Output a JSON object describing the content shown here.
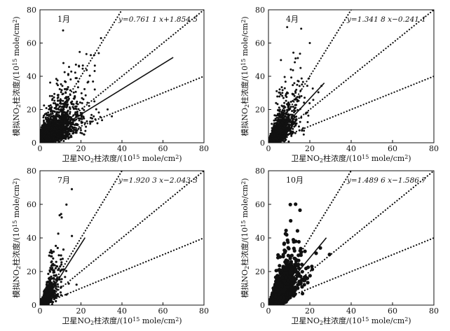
{
  "chart_data": [
    {
      "type": "scatter",
      "month_label": "1月",
      "equation": "y=0.761 1 x+1.854 5",
      "fit": {
        "slope": 0.7611,
        "intercept": 1.8545,
        "x_range": [
          6,
          65
        ]
      },
      "reference_slopes": [
        2,
        1,
        0.5
      ],
      "xlabel": "卫星NO₂柱浓度/(10¹⁵ mole/cm²)",
      "ylabel": "模拟NO₂柱浓度/(10¹⁵ mole/cm²)",
      "xlim": [
        0,
        80
      ],
      "ylim": [
        0,
        80
      ],
      "xticks": [
        "0",
        "20",
        "40",
        "60",
        "80"
      ],
      "yticks": [
        "0",
        "20",
        "40",
        "60",
        "80"
      ],
      "cloud": {
        "x_center": 7,
        "x_spread": 7,
        "x_max": 42,
        "y_spread": 1.1,
        "n": 2400
      }
    },
    {
      "type": "scatter",
      "month_label": "4月",
      "equation": "y=1.341 8 x−0.241 1",
      "fit": {
        "slope": 1.3418,
        "intercept": -0.2411,
        "x_range": [
          4,
          27
        ]
      },
      "reference_slopes": [
        2,
        1,
        0.5
      ],
      "xlabel": "卫星NO₂柱浓度/(10¹⁵ mole/cm²)",
      "ylabel": "模拟NO₂柱浓度/(10¹⁵ mole/cm²)",
      "xlim": [
        0,
        80
      ],
      "ylim": [
        0,
        80
      ],
      "xticks": [
        "0",
        "20",
        "40",
        "60",
        "80"
      ],
      "yticks": [
        "0",
        "20",
        "40",
        "60",
        "80"
      ],
      "cloud": {
        "x_center": 4,
        "x_spread": 5,
        "x_max": 33,
        "y_spread": 1.0,
        "n": 1500
      }
    },
    {
      "type": "scatter",
      "month_label": "7月",
      "equation": "y=1.920 3 x−2.043 3",
      "fit": {
        "slope": 1.9203,
        "intercept": -2.0433,
        "x_range": [
          4,
          22
        ]
      },
      "reference_slopes": [
        2,
        1,
        0.5
      ],
      "xlabel": "卫星NO₂柱浓度/(10¹⁵ mole/cm²)",
      "ylabel": "模拟NO₂柱浓度/(10¹⁵ mole/cm²)",
      "xlim": [
        0,
        80
      ],
      "ylim": [
        0,
        80
      ],
      "xticks": [
        "0",
        "20",
        "40",
        "60",
        "80"
      ],
      "yticks": [
        "0",
        "20",
        "40",
        "60",
        "80"
      ],
      "cloud": {
        "x_center": 3,
        "x_spread": 3.2,
        "x_max": 22,
        "y_spread": 1.0,
        "n": 1200
      }
    },
    {
      "type": "scatter",
      "month_label": "10月",
      "equation": "y=1.489 6 x−1.586 7",
      "fit": {
        "slope": 1.4896,
        "intercept": -1.5867,
        "x_range": [
          5,
          28
        ]
      },
      "reference_slopes": [
        2,
        1,
        0.5
      ],
      "xlabel": "卫星NO₂柱浓度/(10¹⁵ mole/cm²)",
      "ylabel": "模拟NO₂柱浓度/(10¹⁵ mole/cm²)",
      "xlim": [
        0,
        80
      ],
      "ylim": [
        0,
        80
      ],
      "xticks": [
        "0",
        "20",
        "40",
        "60",
        "80"
      ],
      "yticks": [
        "0",
        "20",
        "40",
        "60",
        "80"
      ],
      "cloud": {
        "x_center": 5,
        "x_spread": 5,
        "x_max": 30,
        "y_spread": 1.0,
        "n": 1800
      }
    }
  ]
}
